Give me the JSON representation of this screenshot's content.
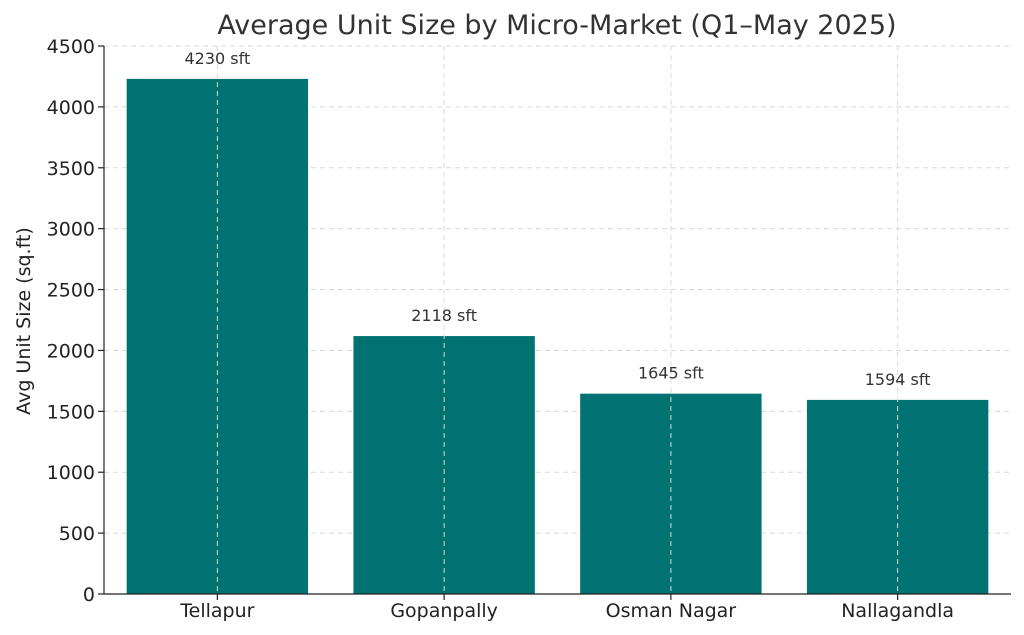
{
  "colors": {
    "bar": "#007272"
  },
  "chart_data": {
    "type": "bar",
    "title": "Average Unit Size by Micro-Market (Q1–May 2025)",
    "xlabel": "",
    "ylabel": "Avg Unit Size (sq.ft)",
    "categories": [
      "Tellapur",
      "Gopanpally",
      "Osman Nagar",
      "Nallagandla"
    ],
    "values": [
      4230,
      2118,
      1645,
      1594
    ],
    "data_labels": [
      "4230 sft",
      "2118 sft",
      "1645 sft",
      "1594 sft"
    ],
    "ylim": [
      0,
      4500
    ],
    "yticks": [
      0,
      500,
      1000,
      1500,
      2000,
      2500,
      3000,
      3500,
      4000,
      4500
    ],
    "grid": true,
    "legend": "none"
  }
}
